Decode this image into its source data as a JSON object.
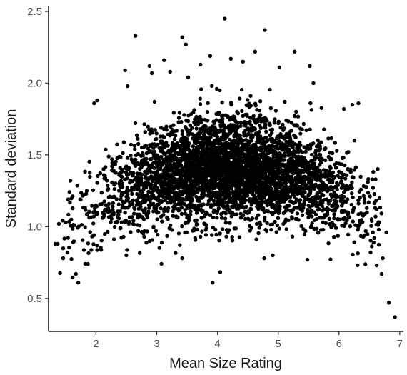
{
  "chart_data": {
    "type": "scatter",
    "title": "",
    "xlabel": "Mean Size Rating",
    "ylabel": "Standard deviation",
    "xlim": [
      1.22,
      7.06
    ],
    "ylim": [
      0.27,
      2.54
    ],
    "xticks": [
      2,
      3,
      4,
      5,
      6,
      7
    ],
    "xtick_labels": [
      "2",
      "3",
      "4",
      "5",
      "6",
      "7"
    ],
    "yticks": [
      0.5,
      1.0,
      1.5,
      2.0,
      2.5
    ],
    "ytick_labels": [
      "0.5",
      "1.0",
      "1.5",
      "2.0",
      "2.5"
    ],
    "grid": false,
    "legend": "none",
    "marker_color": "#000000",
    "series": [
      {
        "values_note_free": true,
        "points": [
          [
            2.65,
            2.33
          ],
          [
            3.42,
            2.32
          ],
          [
            3.48,
            2.27
          ],
          [
            3.88,
            2.19
          ],
          [
            4.12,
            2.45
          ],
          [
            4.22,
            2.17
          ],
          [
            4.78,
            2.37
          ],
          [
            5.27,
            2.22
          ],
          [
            5.52,
            2.12
          ],
          [
            3.12,
            2.16
          ],
          [
            2.48,
            2.09
          ],
          [
            2.52,
            1.98
          ],
          [
            4.62,
            2.22
          ],
          [
            2.92,
            2.07
          ],
          [
            3.72,
            2.13
          ],
          [
            4.42,
            2.15
          ],
          [
            5.02,
            2.11
          ],
          [
            5.58,
            2.0
          ],
          [
            2.88,
            2.12
          ],
          [
            3.22,
            2.08
          ],
          [
            2.02,
            1.88
          ],
          [
            1.97,
            1.86
          ],
          [
            6.32,
            1.86
          ],
          [
            6.22,
            1.85
          ],
          [
            6.08,
            1.82
          ],
          [
            3.92,
            0.61
          ],
          [
            1.71,
            0.61
          ],
          [
            1.67,
            0.67
          ],
          [
            6.7,
            0.67
          ],
          [
            6.82,
            0.47
          ],
          [
            6.92,
            0.37
          ],
          [
            6.62,
            0.73
          ],
          [
            6.52,
            0.82
          ],
          [
            1.53,
            0.82
          ],
          [
            1.46,
            0.78
          ],
          [
            3.42,
            0.78
          ],
          [
            4.77,
            0.78
          ],
          [
            5.48,
            0.77
          ],
          [
            2.5,
            0.8
          ],
          [
            6.72,
            0.78
          ],
          [
            1.39,
            1.02
          ],
          [
            1.37,
            0.88
          ],
          [
            1.33,
            0.88
          ],
          [
            1.54,
            1.19
          ],
          [
            1.58,
            1.32
          ],
          [
            6.55,
            1.33
          ],
          [
            6.62,
            1.12
          ],
          [
            6.78,
            0.96
          ],
          [
            6.66,
            1.03
          ],
          [
            6.58,
            0.92
          ]
        ]
      }
    ],
    "main_cloud": {
      "center_x": 4.2,
      "center_y": 1.4,
      "x_range": [
        1.4,
        6.7
      ],
      "y_typical_range": [
        0.85,
        2.05
      ],
      "approx_points": 4200
    }
  }
}
